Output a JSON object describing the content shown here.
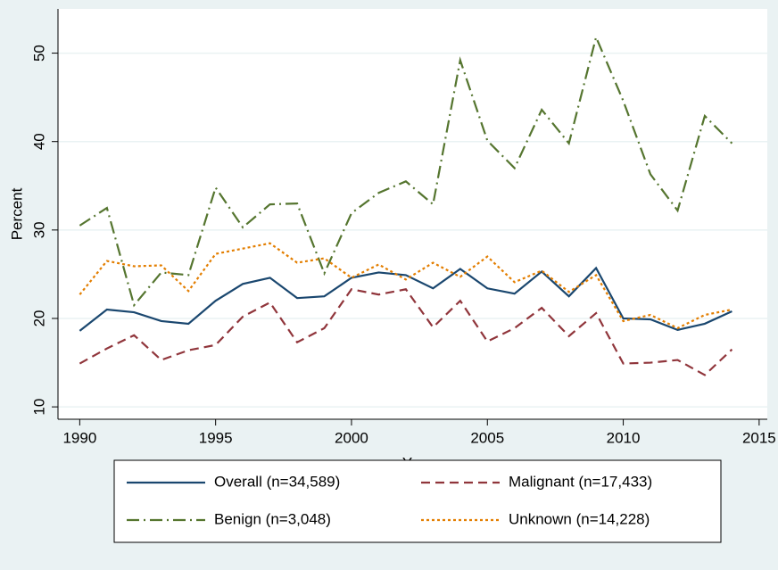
{
  "chart_data": {
    "type": "line",
    "x_label": "Year",
    "y_label": "Percent",
    "x": [
      1990,
      1991,
      1992,
      1993,
      1994,
      1995,
      1996,
      1997,
      1998,
      1999,
      2000,
      2001,
      2002,
      2003,
      2004,
      2005,
      2006,
      2007,
      2008,
      2009,
      2010,
      2011,
      2012,
      2013,
      2014
    ],
    "series": [
      {
        "name": "Overall (n=34,589)",
        "color": "#1a476f",
        "style": "solid",
        "values": [
          18.6,
          21.0,
          20.7,
          19.7,
          19.4,
          22.0,
          23.9,
          24.6,
          22.3,
          22.5,
          24.6,
          25.2,
          24.9,
          23.4,
          25.6,
          23.4,
          22.8,
          25.3,
          22.5,
          25.7,
          20.0,
          19.9,
          18.7,
          19.4,
          20.8
        ]
      },
      {
        "name": "Malignant (n=17,433)",
        "color": "#90353b",
        "style": "dashed",
        "values": [
          14.9,
          16.6,
          18.1,
          15.3,
          16.4,
          17.0,
          20.2,
          21.8,
          17.3,
          18.9,
          23.3,
          22.7,
          23.3,
          19.0,
          22.0,
          17.4,
          18.9,
          21.2,
          18.0,
          20.6,
          14.9,
          15.0,
          15.3,
          13.6,
          16.5
        ]
      },
      {
        "name": "Benign (n=3,048)",
        "color": "#55752f",
        "style": "dashdot",
        "values": [
          30.5,
          32.5,
          21.5,
          25.2,
          24.9,
          34.8,
          30.3,
          32.9,
          33.0,
          25.1,
          31.9,
          34.2,
          35.5,
          32.9,
          49.2,
          40.1,
          37.0,
          43.6,
          39.8,
          51.8,
          44.6,
          36.3,
          32.2,
          42.9,
          39.8
        ]
      },
      {
        "name": "Unknown (n=14,228)",
        "color": "#e37e00",
        "style": "dotted",
        "values": [
          22.7,
          26.5,
          25.9,
          26.0,
          23.1,
          27.3,
          27.9,
          28.5,
          26.3,
          26.8,
          24.6,
          26.1,
          24.4,
          26.3,
          24.7,
          27.0,
          24.1,
          25.4,
          23.0,
          24.9,
          19.7,
          20.4,
          18.9,
          20.4,
          21.0
        ]
      }
    ],
    "xlim": [
      1989.2,
      2015.3
    ],
    "ylim": [
      8.6,
      55
    ],
    "xticks": [
      1990,
      1995,
      2000,
      2005,
      2010,
      2015
    ],
    "yticks": [
      10,
      20,
      30,
      40,
      50
    ],
    "grid": true,
    "legend": "bottom"
  }
}
